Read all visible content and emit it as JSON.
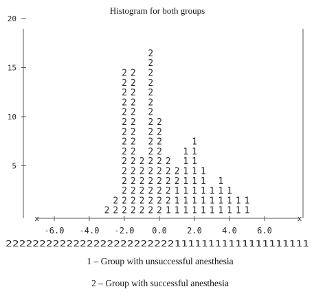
{
  "chart_data": {
    "type": "histogram",
    "title": "Histogram for both groups",
    "y_ticks": [
      "20",
      "15",
      "10",
      "5"
    ],
    "x_ticks": [
      "-6.0",
      "-4.0",
      "-2.0",
      "0.0",
      "2.0",
      "4.0",
      "6.0"
    ],
    "ylim": [
      0,
      20
    ],
    "xlim": [
      -7.0,
      8.0
    ],
    "axis_end_marker": "x",
    "bin_width": 0.5,
    "series": [
      {
        "name": "1 – Group with unsuccessful anesthesia",
        "symbol": "1"
      },
      {
        "name": "2 – Group with successful anesthesia",
        "symbol": "2"
      }
    ],
    "bins": [
      {
        "x": -3.0,
        "stack": "2"
      },
      {
        "x": -2.5,
        "stack": "22"
      },
      {
        "x": -2.0,
        "stack": "222222222222222"
      },
      {
        "x": -1.5,
        "stack": "222222222222222"
      },
      {
        "x": -1.0,
        "stack": "222222"
      },
      {
        "x": -0.5,
        "stack": "22222222222222222"
      },
      {
        "x": 0.0,
        "stack": "2222222222"
      },
      {
        "x": 0.5,
        "stack": "122222"
      },
      {
        "x": 1.0,
        "stack": "11122"
      },
      {
        "x": 1.5,
        "stack": "1111111"
      },
      {
        "x": 2.0,
        "stack": "11111111"
      },
      {
        "x": 2.5,
        "stack": "11111"
      },
      {
        "x": 3.0,
        "stack": "111"
      },
      {
        "x": 3.5,
        "stack": "1111"
      },
      {
        "x": 4.0,
        "stack": "111"
      },
      {
        "x": 4.5,
        "stack": "11"
      },
      {
        "x": 5.0,
        "stack": "11"
      }
    ],
    "rug_row": "222222222222222222222222211111111111111111111"
  },
  "legend": {
    "line1": "1 – Group with unsuccessful anesthesia",
    "line2": "2 – Group with successful anesthesia"
  }
}
